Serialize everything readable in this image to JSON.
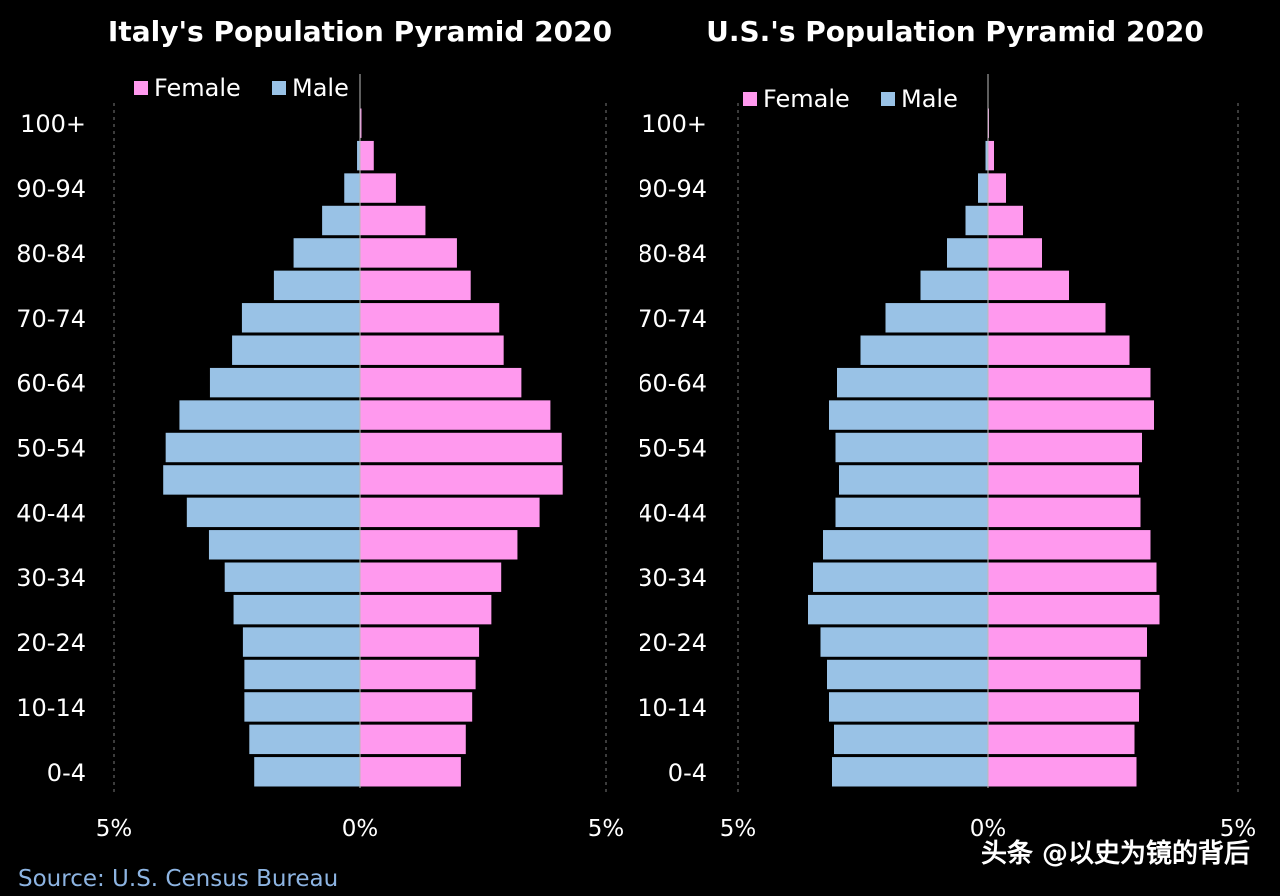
{
  "chart_data": [
    {
      "type": "bar",
      "orientation": "horizontal-pyramid",
      "title": "Italy's Population Pyramid 2020",
      "categories": [
        "0-4",
        "5-9",
        "10-14",
        "15-19",
        "20-24",
        "25-29",
        "30-34",
        "35-39",
        "40-44",
        "45-49",
        "50-54",
        "55-59",
        "60-64",
        "65-69",
        "70-74",
        "75-79",
        "80-84",
        "85-89",
        "90-94",
        "95-99",
        "100+"
      ],
      "y_tick_labels": [
        "0-4",
        "10-14",
        "20-24",
        "30-34",
        "40-44",
        "50-54",
        "60-64",
        "70-74",
        "80-84",
        "90-94",
        "100+"
      ],
      "x_tick_labels": [
        "5%",
        "0%",
        "5%"
      ],
      "xlim": [
        -5,
        5
      ],
      "legend": {
        "position": "top",
        "entries": [
          "Female",
          "Male"
        ]
      },
      "series": [
        {
          "name": "Female",
          "side": "right",
          "values": [
            2.05,
            2.15,
            2.28,
            2.35,
            2.42,
            2.67,
            2.87,
            3.2,
            3.65,
            4.12,
            4.1,
            3.87,
            3.28,
            2.92,
            2.83,
            2.25,
            1.97,
            1.33,
            0.73,
            0.28,
            0.03
          ]
        },
        {
          "name": "Male",
          "side": "left",
          "values": [
            2.15,
            2.25,
            2.35,
            2.35,
            2.38,
            2.57,
            2.75,
            3.07,
            3.52,
            4.0,
            3.95,
            3.67,
            3.05,
            2.6,
            2.4,
            1.75,
            1.35,
            0.77,
            0.32,
            0.06,
            0.01
          ]
        }
      ]
    },
    {
      "type": "bar",
      "orientation": "horizontal-pyramid",
      "title": "U.S.'s Population Pyramid 2020",
      "categories": [
        "0-4",
        "5-9",
        "10-14",
        "15-19",
        "20-24",
        "25-29",
        "30-34",
        "35-39",
        "40-44",
        "45-49",
        "50-54",
        "55-59",
        "60-64",
        "65-69",
        "70-74",
        "75-79",
        "80-84",
        "85-89",
        "90-94",
        "95-99",
        "100+"
      ],
      "y_tick_labels": [
        "0-4",
        "10-14",
        "20-24",
        "30-34",
        "40-44",
        "50-54",
        "60-64",
        "70-74",
        "80-84",
        "90-94",
        "100+"
      ],
      "x_tick_labels": [
        "5%",
        "0%",
        "5%"
      ],
      "xlim": [
        -5,
        5
      ],
      "legend": {
        "position": "top",
        "entries": [
          "Female",
          "Male"
        ]
      },
      "series": [
        {
          "name": "Female",
          "side": "right",
          "values": [
            2.97,
            2.93,
            3.02,
            3.05,
            3.18,
            3.43,
            3.37,
            3.25,
            3.05,
            3.02,
            3.08,
            3.32,
            3.25,
            2.83,
            2.35,
            1.62,
            1.08,
            0.7,
            0.36,
            0.12,
            0.02
          ]
        },
        {
          "name": "Male",
          "side": "left",
          "values": [
            3.12,
            3.08,
            3.18,
            3.22,
            3.35,
            3.6,
            3.5,
            3.3,
            3.05,
            2.98,
            3.05,
            3.18,
            3.02,
            2.55,
            2.05,
            1.35,
            0.82,
            0.45,
            0.2,
            0.05,
            0.01
          ]
        }
      ]
    }
  ],
  "source": "Source: U.S. Census Bureau",
  "watermark": "头条 @以史为镜的背后",
  "colors": {
    "female": "#ff99ee",
    "male": "#99c2e6",
    "background": "#000000",
    "text": "#ffffff",
    "source": "#8db4e2"
  }
}
